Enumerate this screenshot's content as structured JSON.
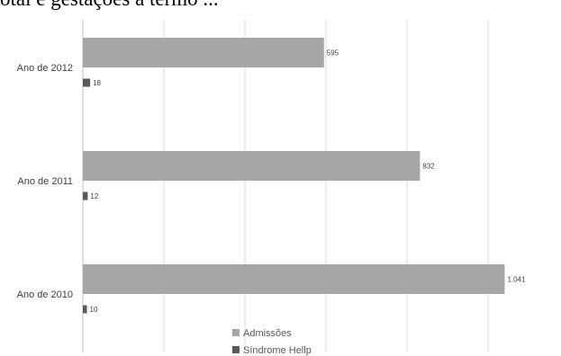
{
  "heading": "otal e gestações a termo ...",
  "chart_data": {
    "type": "bar",
    "orientation": "horizontal",
    "categories": [
      "Ano de 2012",
      "Ano de 2011",
      "Ano de 2010"
    ],
    "series": [
      {
        "name": "Admissões",
        "values": [
          595,
          832,
          1041
        ],
        "labels": [
          "595",
          "832",
          "1.041"
        ],
        "color": "#a6a6a6"
      },
      {
        "name": "Síndrome Hellp",
        "values": [
          18,
          12,
          10
        ],
        "labels": [
          "18",
          "12",
          "10"
        ],
        "color": "#595959"
      }
    ],
    "xlim": [
      0,
      1200
    ],
    "grid": true,
    "legend": "bottom-center",
    "title": "",
    "xlabel": "",
    "ylabel": ""
  }
}
